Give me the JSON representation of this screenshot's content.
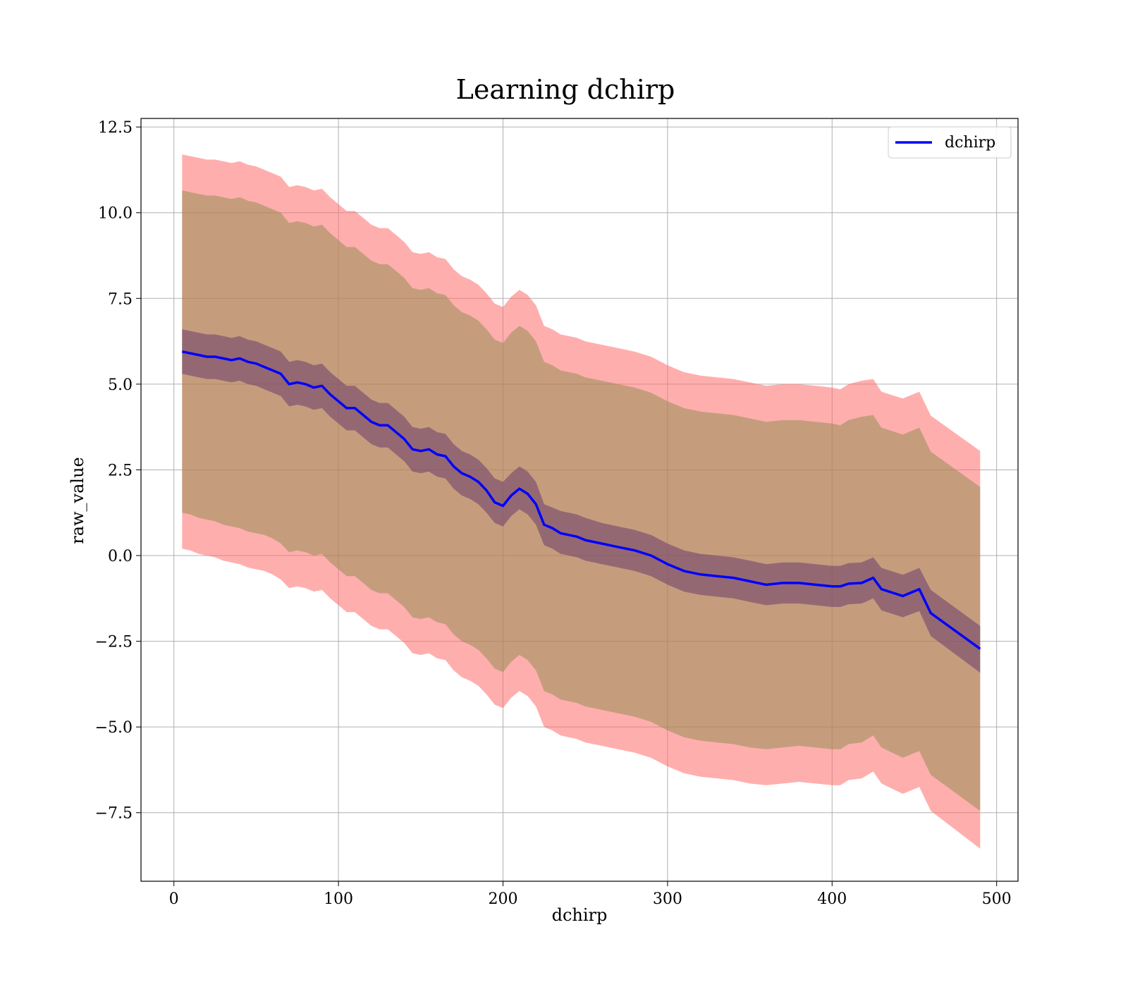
{
  "chart_data": {
    "type": "line",
    "title": "Learning dchirp",
    "xlabel": "dchirp",
    "ylabel": "raw_value",
    "xlim": [
      -20,
      513
    ],
    "ylim": [
      -9.5,
      12.75
    ],
    "xticks": [
      0,
      100,
      200,
      300,
      400,
      500
    ],
    "xtick_labels": [
      "0",
      "100",
      "200",
      "300",
      "400",
      "500"
    ],
    "yticks": [
      -7.5,
      -5.0,
      -2.5,
      0.0,
      2.5,
      5.0,
      7.5,
      10.0,
      12.5
    ],
    "ytick_labels": [
      "−7.5",
      "−5.0",
      "−2.5",
      "0.0",
      "2.5",
      "5.0",
      "7.5",
      "10.0",
      "12.5"
    ],
    "grid": true,
    "legend_position": "top-right",
    "colors": {
      "line": "#0000ff",
      "outer_band": "#ff6b6b",
      "middle_band": "#8b8b4b",
      "inner_band": "#6b3d6b"
    },
    "series": [
      {
        "name": "dchirp",
        "x": [
          5,
          10,
          15,
          20,
          25,
          30,
          35,
          40,
          45,
          50,
          55,
          60,
          65,
          70,
          75,
          80,
          85,
          90,
          95,
          100,
          105,
          110,
          115,
          120,
          125,
          130,
          135,
          140,
          145,
          150,
          155,
          160,
          165,
          170,
          175,
          180,
          185,
          190,
          195,
          200,
          205,
          210,
          215,
          220,
          225,
          230,
          235,
          240,
          245,
          250,
          260,
          270,
          280,
          290,
          300,
          310,
          320,
          330,
          340,
          350,
          360,
          370,
          380,
          390,
          400,
          405,
          410,
          418,
          425,
          430,
          443,
          453,
          460,
          490
        ],
        "y": [
          5.95,
          5.9,
          5.85,
          5.8,
          5.8,
          5.75,
          5.7,
          5.75,
          5.65,
          5.6,
          5.5,
          5.4,
          5.3,
          5.0,
          5.05,
          5.0,
          4.9,
          4.95,
          4.7,
          4.5,
          4.3,
          4.3,
          4.1,
          3.9,
          3.8,
          3.8,
          3.6,
          3.4,
          3.1,
          3.05,
          3.1,
          2.95,
          2.9,
          2.6,
          2.4,
          2.3,
          2.15,
          1.9,
          1.55,
          1.45,
          1.75,
          1.95,
          1.8,
          1.5,
          0.9,
          0.8,
          0.65,
          0.6,
          0.55,
          0.45,
          0.35,
          0.25,
          0.15,
          0.0,
          -0.25,
          -0.45,
          -0.55,
          -0.6,
          -0.65,
          -0.75,
          -0.85,
          -0.8,
          -0.8,
          -0.85,
          -0.9,
          -0.9,
          -0.82,
          -0.8,
          -0.65,
          -0.98,
          -1.18,
          -0.98,
          -1.68,
          -2.72
        ]
      }
    ],
    "bands": [
      {
        "label": "outer",
        "lower": [
          0.2,
          0.15,
          0.05,
          0.0,
          -0.05,
          -0.15,
          -0.2,
          -0.25,
          -0.35,
          -0.4,
          -0.45,
          -0.55,
          -0.7,
          -0.95,
          -0.9,
          -0.95,
          -1.05,
          -1.0,
          -1.25,
          -1.45,
          -1.65,
          -1.65,
          -1.85,
          -2.05,
          -2.15,
          -2.15,
          -2.35,
          -2.55,
          -2.85,
          -2.9,
          -2.85,
          -3.0,
          -3.05,
          -3.35,
          -3.55,
          -3.65,
          -3.8,
          -4.05,
          -4.35,
          -4.45,
          -4.15,
          -3.95,
          -4.1,
          -4.4,
          -5.0,
          -5.1,
          -5.25,
          -5.3,
          -5.35,
          -5.45,
          -5.55,
          -5.65,
          -5.75,
          -5.9,
          -6.15,
          -6.35,
          -6.45,
          -6.5,
          -6.55,
          -6.65,
          -6.7,
          -6.65,
          -6.6,
          -6.65,
          -6.7,
          -6.7,
          -6.55,
          -6.5,
          -6.3,
          -6.65,
          -6.95,
          -6.75,
          -7.45,
          -8.55
        ],
        "upper": [
          11.7,
          11.65,
          11.6,
          11.55,
          11.55,
          11.5,
          11.45,
          11.5,
          11.4,
          11.35,
          11.25,
          11.15,
          11.05,
          10.75,
          10.8,
          10.75,
          10.65,
          10.7,
          10.45,
          10.25,
          10.05,
          10.05,
          9.85,
          9.65,
          9.55,
          9.55,
          9.35,
          9.15,
          8.85,
          8.8,
          8.85,
          8.7,
          8.65,
          8.35,
          8.15,
          8.05,
          7.9,
          7.65,
          7.35,
          7.25,
          7.55,
          7.75,
          7.6,
          7.3,
          6.7,
          6.6,
          6.45,
          6.4,
          6.35,
          6.25,
          6.15,
          6.05,
          5.95,
          5.8,
          5.55,
          5.35,
          5.25,
          5.2,
          5.15,
          5.05,
          4.95,
          5.0,
          5.0,
          4.95,
          4.9,
          4.85,
          5.0,
          5.1,
          5.15,
          4.78,
          4.58,
          4.78,
          4.08,
          3.05
        ]
      },
      {
        "label": "middle",
        "lower": [
          1.25,
          1.2,
          1.1,
          1.05,
          1.0,
          0.9,
          0.85,
          0.8,
          0.7,
          0.65,
          0.6,
          0.5,
          0.35,
          0.1,
          0.15,
          0.1,
          0.0,
          0.05,
          -0.2,
          -0.4,
          -0.6,
          -0.6,
          -0.8,
          -1.0,
          -1.1,
          -1.1,
          -1.3,
          -1.5,
          -1.8,
          -1.85,
          -1.8,
          -1.95,
          -2.0,
          -2.3,
          -2.5,
          -2.6,
          -2.75,
          -3.0,
          -3.3,
          -3.4,
          -3.1,
          -2.9,
          -3.05,
          -3.35,
          -3.95,
          -4.05,
          -4.2,
          -4.25,
          -4.3,
          -4.4,
          -4.5,
          -4.6,
          -4.7,
          -4.85,
          -5.1,
          -5.3,
          -5.4,
          -5.45,
          -5.5,
          -5.6,
          -5.65,
          -5.6,
          -5.55,
          -5.6,
          -5.65,
          -5.65,
          -5.5,
          -5.45,
          -5.25,
          -5.6,
          -5.9,
          -5.7,
          -6.4,
          -7.45
        ],
        "upper": [
          10.65,
          10.6,
          10.55,
          10.5,
          10.5,
          10.45,
          10.4,
          10.45,
          10.35,
          10.3,
          10.2,
          10.1,
          10.0,
          9.7,
          9.75,
          9.7,
          9.6,
          9.65,
          9.4,
          9.2,
          9.0,
          9.0,
          8.8,
          8.6,
          8.5,
          8.5,
          8.3,
          8.1,
          7.8,
          7.75,
          7.8,
          7.65,
          7.6,
          7.3,
          7.1,
          7.0,
          6.85,
          6.6,
          6.3,
          6.2,
          6.5,
          6.7,
          6.55,
          6.25,
          5.65,
          5.55,
          5.4,
          5.35,
          5.3,
          5.2,
          5.1,
          5.0,
          4.9,
          4.75,
          4.5,
          4.3,
          4.2,
          4.15,
          4.1,
          4.0,
          3.9,
          3.95,
          3.95,
          3.9,
          3.85,
          3.8,
          3.95,
          4.05,
          4.1,
          3.73,
          3.53,
          3.73,
          3.03,
          2.0
        ]
      },
      {
        "label": "inner",
        "lower": [
          5.3,
          5.25,
          5.2,
          5.15,
          5.15,
          5.1,
          5.05,
          5.1,
          5.0,
          4.95,
          4.85,
          4.75,
          4.65,
          4.35,
          4.4,
          4.35,
          4.25,
          4.3,
          4.05,
          3.85,
          3.65,
          3.65,
          3.45,
          3.25,
          3.15,
          3.15,
          2.95,
          2.75,
          2.45,
          2.4,
          2.45,
          2.3,
          2.25,
          1.95,
          1.75,
          1.65,
          1.5,
          1.25,
          0.95,
          0.85,
          1.15,
          1.35,
          1.2,
          0.9,
          0.3,
          0.2,
          0.05,
          0.0,
          -0.05,
          -0.15,
          -0.25,
          -0.35,
          -0.45,
          -0.6,
          -0.85,
          -1.05,
          -1.15,
          -1.2,
          -1.25,
          -1.35,
          -1.45,
          -1.4,
          -1.4,
          -1.45,
          -1.5,
          -1.5,
          -1.42,
          -1.4,
          -1.25,
          -1.6,
          -1.8,
          -1.62,
          -2.35,
          -3.42
        ],
        "upper": [
          6.6,
          6.55,
          6.5,
          6.45,
          6.45,
          6.4,
          6.35,
          6.4,
          6.3,
          6.25,
          6.15,
          6.05,
          5.95,
          5.65,
          5.7,
          5.65,
          5.55,
          5.6,
          5.35,
          5.15,
          4.95,
          4.95,
          4.75,
          4.55,
          4.45,
          4.45,
          4.25,
          4.05,
          3.75,
          3.7,
          3.75,
          3.6,
          3.55,
          3.25,
          3.05,
          2.95,
          2.8,
          2.55,
          2.25,
          2.15,
          2.4,
          2.6,
          2.45,
          2.15,
          1.5,
          1.4,
          1.3,
          1.25,
          1.2,
          1.1,
          0.95,
          0.85,
          0.75,
          0.6,
          0.35,
          0.15,
          0.05,
          0.0,
          -0.05,
          -0.15,
          -0.25,
          -0.2,
          -0.2,
          -0.25,
          -0.3,
          -0.3,
          -0.22,
          -0.2,
          -0.05,
          -0.36,
          -0.56,
          -0.36,
          -1.0,
          -2.05
        ]
      }
    ]
  }
}
